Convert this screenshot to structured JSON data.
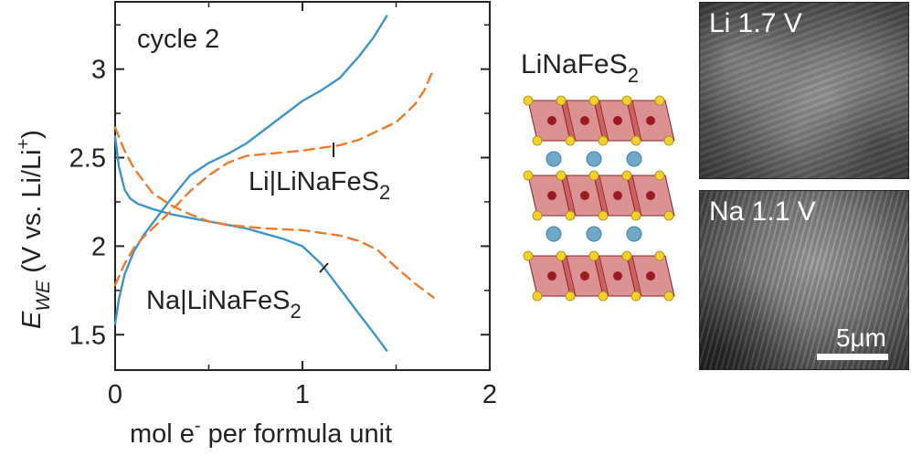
{
  "chart_data": {
    "type": "line",
    "annotation": "cycle 2",
    "xlabel": "mol e",
    "xlabel_sup": "-",
    "xlabel_rest": " per formula unit",
    "ylabel_main": "E",
    "ylabel_sub": "WE",
    "ylabel_rest": " (V vs. Li/Li",
    "ylabel_sup": "+",
    "ylabel_end": ")",
    "xlim": [
      0,
      2
    ],
    "ylim": [
      1.3,
      3.38
    ],
    "xticks": [
      "0",
      "1",
      "2"
    ],
    "yticks": [
      "1.5",
      "2",
      "2.5",
      "3"
    ],
    "xtick_values": [
      0,
      1,
      2
    ],
    "ytick_values": [
      1.5,
      2,
      2.5,
      3
    ],
    "grid": false,
    "series": [
      {
        "name": "Na|LiNaFeS₂",
        "color": "#3d94c9",
        "style": "solid",
        "segments": [
          {
            "phase": "discharge",
            "x": [
              0,
              0.02,
              0.05,
              0.08,
              0.12,
              0.2,
              0.3,
              0.4,
              0.5,
              0.6,
              0.7,
              0.8,
              0.9,
              1.0,
              1.1,
              1.2,
              1.3,
              1.38,
              1.45
            ],
            "y": [
              2.62,
              2.45,
              2.32,
              2.27,
              2.24,
              2.21,
              2.18,
              2.16,
              2.14,
              2.12,
              2.1,
              2.07,
              2.04,
              2.0,
              1.9,
              1.76,
              1.62,
              1.51,
              1.41
            ]
          },
          {
            "phase": "charge",
            "x": [
              0,
              0.02,
              0.05,
              0.1,
              0.15,
              0.2,
              0.25,
              0.3,
              0.4,
              0.5,
              0.6,
              0.7,
              0.8,
              0.9,
              1.0,
              1.1,
              1.2,
              1.3,
              1.38,
              1.45
            ],
            "y": [
              1.56,
              1.7,
              1.84,
              1.97,
              2.06,
              2.13,
              2.2,
              2.27,
              2.4,
              2.47,
              2.52,
              2.58,
              2.66,
              2.74,
              2.82,
              2.88,
              2.95,
              3.07,
              3.18,
              3.3
            ]
          }
        ]
      },
      {
        "name": "Li|LiNaFeS₂",
        "color": "#f07a2c",
        "style": "dashed",
        "segments": [
          {
            "phase": "discharge",
            "x": [
              0,
              0.05,
              0.1,
              0.15,
              0.2,
              0.3,
              0.4,
              0.5,
              0.6,
              0.8,
              1.0,
              1.2,
              1.3,
              1.4,
              1.5,
              1.6,
              1.7
            ],
            "y": [
              2.67,
              2.54,
              2.44,
              2.37,
              2.3,
              2.23,
              2.18,
              2.14,
              2.12,
              2.1,
              2.09,
              2.06,
              2.03,
              1.98,
              1.88,
              1.79,
              1.71
            ]
          },
          {
            "phase": "charge",
            "x": [
              0,
              0.05,
              0.1,
              0.15,
              0.2,
              0.3,
              0.4,
              0.5,
              0.6,
              0.7,
              0.8,
              1.0,
              1.2,
              1.3,
              1.4,
              1.5,
              1.55,
              1.6,
              1.65,
              1.7
            ],
            "y": [
              1.78,
              1.9,
              1.99,
              2.05,
              2.1,
              2.2,
              2.31,
              2.4,
              2.47,
              2.51,
              2.52,
              2.54,
              2.57,
              2.6,
              2.65,
              2.7,
              2.75,
              2.8,
              2.88,
              3.0
            ]
          }
        ]
      }
    ],
    "curve_labels": [
      {
        "text": "Li|LiNaFeS",
        "sub": "2"
      },
      {
        "text": "Na|LiNaFeS",
        "sub": "2"
      }
    ]
  },
  "structure_panel": {
    "title": "LiNaFeS",
    "title_sub": "2",
    "colors": {
      "octahedron": "#c0393b",
      "sulfur": "#f2d22a",
      "iron": "#9b1a1f",
      "interlayer": "#6fa8c8"
    }
  },
  "sem_images": [
    {
      "label": "Li 1.7 V"
    },
    {
      "label": "Na 1.1 V",
      "scalebar_label": "5μm"
    }
  ],
  "colors": {
    "axis": "#222222",
    "na_curve": "#3d94c9",
    "li_curve": "#f07a2c"
  }
}
